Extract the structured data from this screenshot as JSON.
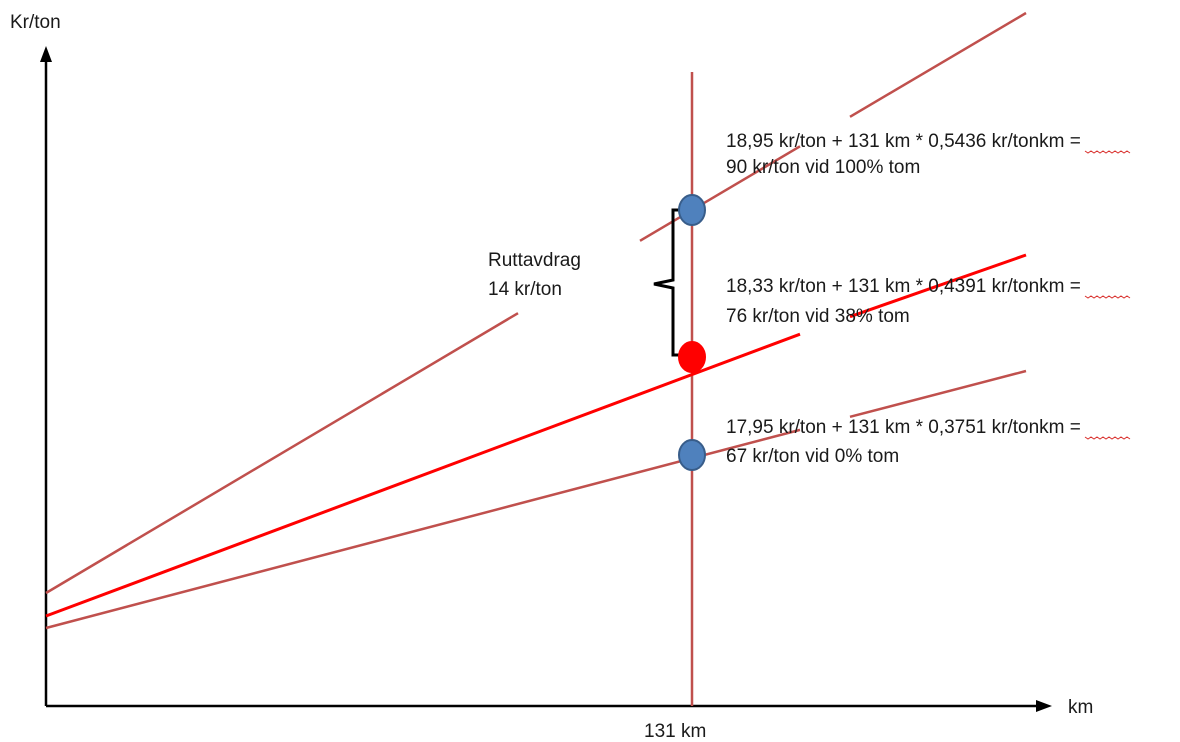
{
  "axes": {
    "y_label": "Kr/ton",
    "x_label": "km",
    "x_marker_label": "131 km"
  },
  "chart_data": {
    "type": "line",
    "xlabel": "km",
    "ylabel": "Kr/ton",
    "marker_x": 131,
    "series": [
      {
        "intercept": 18.95,
        "slope": 0.5436,
        "value_at_marker": 90,
        "color": "#c0504d"
      },
      {
        "intercept": 18.33,
        "slope": 0.4391,
        "value_at_marker": 76,
        "color": "#ff0000"
      },
      {
        "intercept": 17.95,
        "slope": 0.3751,
        "value_at_marker": 67,
        "color": "#c0504d"
      }
    ]
  },
  "annotations": {
    "top": {
      "line1": "18,95 kr/ton + 131 km * 0,5436 kr/tonkm =",
      "line2": "90 kr/ton vid 100% tom"
    },
    "middle": {
      "line1": "18,33 kr/ton + 131 km * 0,4391 kr/tonkm =",
      "line2": "76 kr/ton vid 38% tom"
    },
    "bottom": {
      "line1": "17,95 kr/ton + 131 km * 0,3751 kr/tonkm =",
      "line2": "67 kr/ton vid 0% tom"
    }
  },
  "brace_label": {
    "line1": "Ruttavdrag",
    "line2": "14 kr/ton"
  },
  "colors": {
    "muted_red": "#c0504d",
    "bright_red": "#ff0000",
    "marker_blue": "#4f81bd",
    "marker_blue_edge": "#385d8a",
    "marker_red": "#ff0000"
  }
}
